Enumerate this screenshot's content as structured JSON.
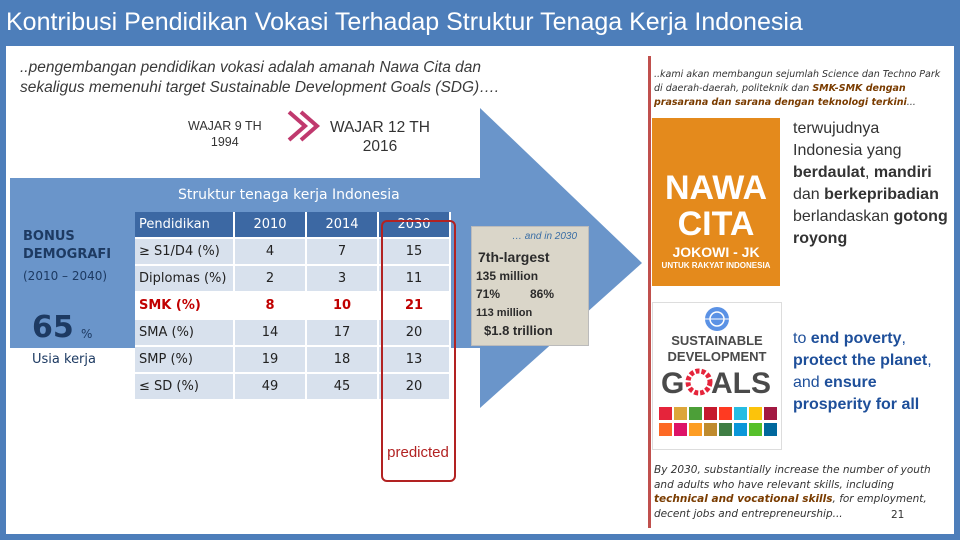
{
  "title": "Kontribusi Pendidikan Vokasi Terhadap Struktur Tenaga Kerja Indonesia",
  "quote_line1": "..pengembangan pendidikan vokasi adalah amanah Nawa Cita dan",
  "quote_line2": "sekaligus memenuhi target Sustainable Development Goals (SDG)….",
  "wajar9": {
    "label": "WAJAR 9 TH",
    "year": "1994"
  },
  "wajar12": {
    "label": "WAJAR 12 TH",
    "year": "2016"
  },
  "struktur_title": "Struktur tenaga kerja Indonesia",
  "bonus": {
    "line1": "BONUS",
    "line2": "DEMOGRAFI",
    "years": "(2010 – 2040)",
    "pct": "65",
    "pct_sign": "%",
    "usia": "Usia kerja"
  },
  "table": {
    "headers": [
      "Pendidikan",
      "2010",
      "2014",
      "2030"
    ],
    "rows": [
      [
        "≥ S1/D4 (%)",
        "4",
        "7",
        "15"
      ],
      [
        "Diplomas (%)",
        "2",
        "3",
        "11"
      ],
      [
        "SMK (%)",
        "8",
        "10",
        "21"
      ],
      [
        "SMA (%)",
        "14",
        "17",
        "20"
      ],
      [
        "SMP (%)",
        "19",
        "18",
        "13"
      ],
      [
        "≤ SD (%)",
        "49",
        "45",
        "20"
      ]
    ]
  },
  "predicted": "predicted",
  "img2030": {
    "header": "… and in 2030",
    "r1": "7th-largest",
    "r2": "135 million",
    "r3a": "71%",
    "r3b": "86%",
    "r4": "113 million",
    "r5": "$1.8 trillion"
  },
  "kami": {
    "pre": "..kami akan membangun sejumlah Science dan Techno Park di daerah-daerah, politeknik dan ",
    "hl": "SMK-SMK dengan prasarana dan sarana dengan teknologi terkini",
    "post": "..."
  },
  "nawa": {
    "w1": "NAWA",
    "w2": "CITA",
    "w3": "JOKOWI - JK",
    "w4": "UNTUK RAKYAT INDONESIA"
  },
  "right1": {
    "a": "terwujudnya Indonesia yang ",
    "b": "berdaulat",
    "c": ", ",
    "d": "mandiri",
    "e": " dan ",
    "f": "berkepribadian",
    "g": " berlandaskan ",
    "h": "gotong royong"
  },
  "sdg": {
    "l1": "SUSTAINABLE",
    "l2": "DEVELOPMENT",
    "l3a": "G",
    "l3b": "ALS"
  },
  "right2": {
    "a": "to ",
    "b": "end poverty",
    "c": ", ",
    "d": "protect the planet",
    "e": ", and ",
    "f": "ensure prosperity for all"
  },
  "by2030": {
    "pre": "By 2030, substantially increase the number of youth and adults who have relevant skills, including ",
    "hl": "technical and vocational skills",
    "post": ", for employment, decent jobs and entrepreneurship..."
  },
  "page_number": "21",
  "colors": {
    "accent": "#4d7eba",
    "table_head": "#3c68a3",
    "smk_red": "#c00000",
    "nawa_orange": "#e48a1c"
  }
}
